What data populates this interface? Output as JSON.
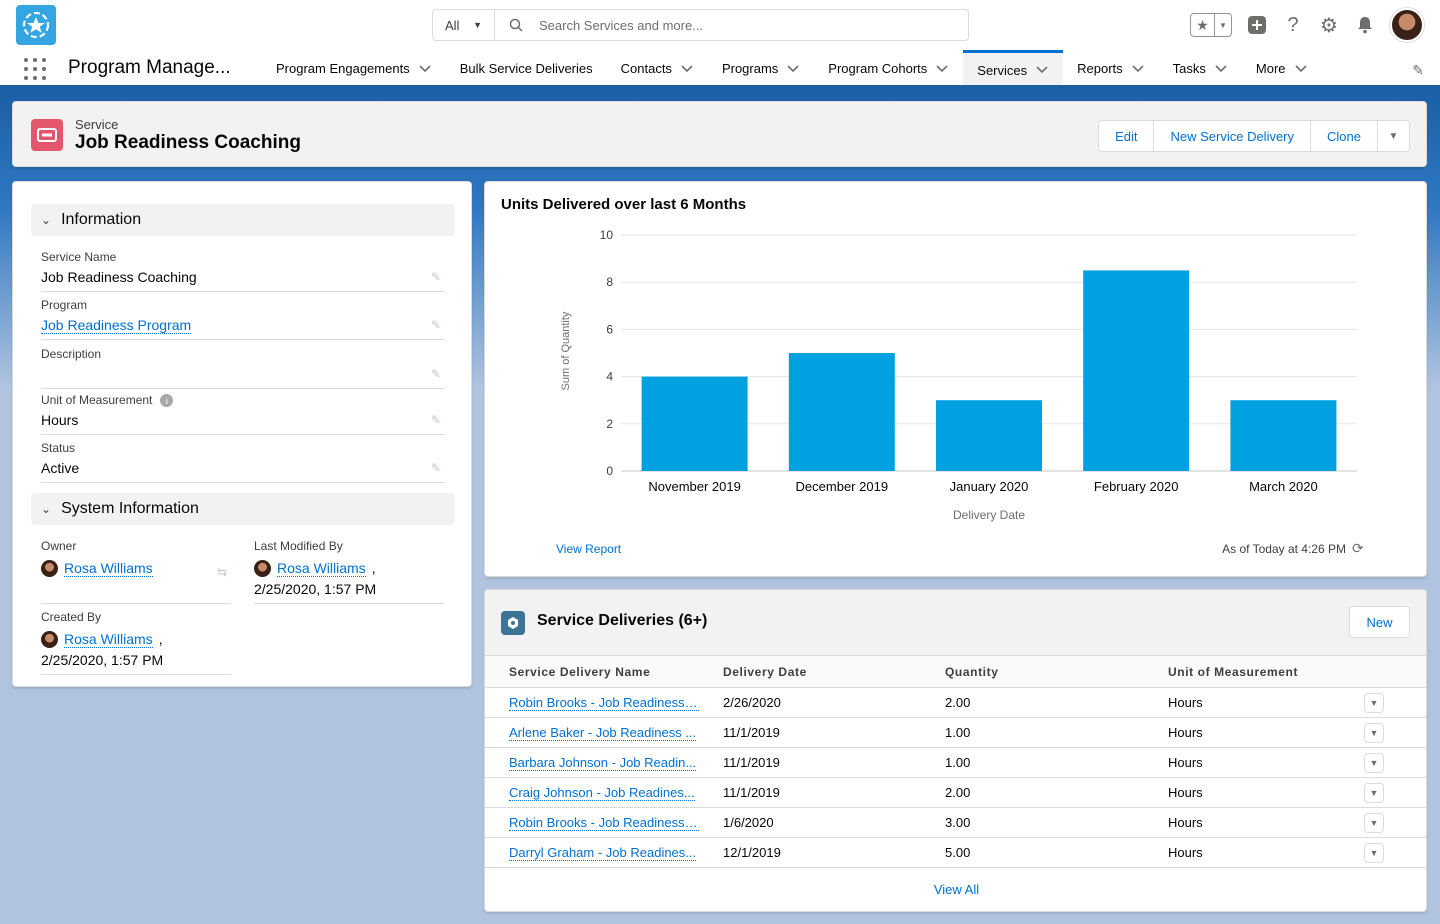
{
  "header": {
    "search_scope": "All",
    "search_placeholder": "Search Services and more..."
  },
  "nav": {
    "app_name": "Program Manage...",
    "items": [
      {
        "label": "Program Engagements",
        "has_menu": true
      },
      {
        "label": "Bulk Service Deliveries",
        "has_menu": false
      },
      {
        "label": "Contacts",
        "has_menu": true
      },
      {
        "label": "Programs",
        "has_menu": true
      },
      {
        "label": "Program Cohorts",
        "has_menu": true
      },
      {
        "label": "Services",
        "has_menu": true,
        "active": true
      },
      {
        "label": "Reports",
        "has_menu": true
      },
      {
        "label": "Tasks",
        "has_menu": true
      },
      {
        "label": "More",
        "has_menu": true
      }
    ]
  },
  "record": {
    "type": "Service",
    "title": "Job Readiness Coaching",
    "actions": [
      "Edit",
      "New Service Delivery",
      "Clone"
    ]
  },
  "information": {
    "section_title": "Information",
    "fields": [
      {
        "label": "Service Name",
        "value": "Job Readiness Coaching"
      },
      {
        "label": "Program",
        "value": "Job Readiness Program"
      },
      {
        "label": "Description",
        "value": ""
      },
      {
        "label": "Unit of Measurement",
        "value": "Hours"
      },
      {
        "label": "Status",
        "value": "Active"
      }
    ]
  },
  "system_information": {
    "section_title": "System Information",
    "owner_label": "Owner",
    "owner": "Rosa Williams",
    "last_modified_label": "Last Modified By",
    "last_modified_by": "Rosa Williams",
    "last_modified_date": "2/25/2020, 1:57 PM",
    "created_label": "Created By",
    "created_by": "Rosa Williams",
    "created_date": "2/25/2020, 1:57 PM"
  },
  "chart_card": {
    "view_report": "View Report",
    "as_of": "As of Today at 4:26 PM"
  },
  "chart_data": {
    "type": "bar",
    "title": "Units Delivered over last 6 Months",
    "categories": [
      "November 2019",
      "December 2019",
      "January 2020",
      "February 2020",
      "March 2020"
    ],
    "values": [
      4,
      5,
      3,
      8.5,
      3
    ],
    "xlabel": "Delivery Date",
    "ylabel": "Sum of Quantity",
    "ylim": [
      0,
      10
    ],
    "yticks": [
      0,
      2,
      4,
      6,
      8,
      10
    ],
    "grid": true,
    "color": "#00a1e0"
  },
  "related": {
    "title": "Service Deliveries (6+)",
    "new_label": "New",
    "columns": [
      "Service Delivery Name",
      "Delivery Date",
      "Quantity",
      "Unit of Measurement"
    ],
    "rows": [
      [
        "Robin Brooks - Job Readiness ...",
        "2/26/2020",
        "2.00",
        "Hours"
      ],
      [
        "Arlene Baker - Job Readiness ...",
        "11/1/2019",
        "1.00",
        "Hours"
      ],
      [
        "Barbara Johnson - Job Readin...",
        "11/1/2019",
        "1.00",
        "Hours"
      ],
      [
        "Craig Johnson - Job Readines...",
        "11/1/2019",
        "2.00",
        "Hours"
      ],
      [
        "Robin Brooks - Job Readiness ...",
        "1/6/2020",
        "3.00",
        "Hours"
      ],
      [
        "Darryl Graham - Job Readines...",
        "12/1/2019",
        "5.00",
        "Hours"
      ]
    ],
    "view_all": "View All"
  }
}
